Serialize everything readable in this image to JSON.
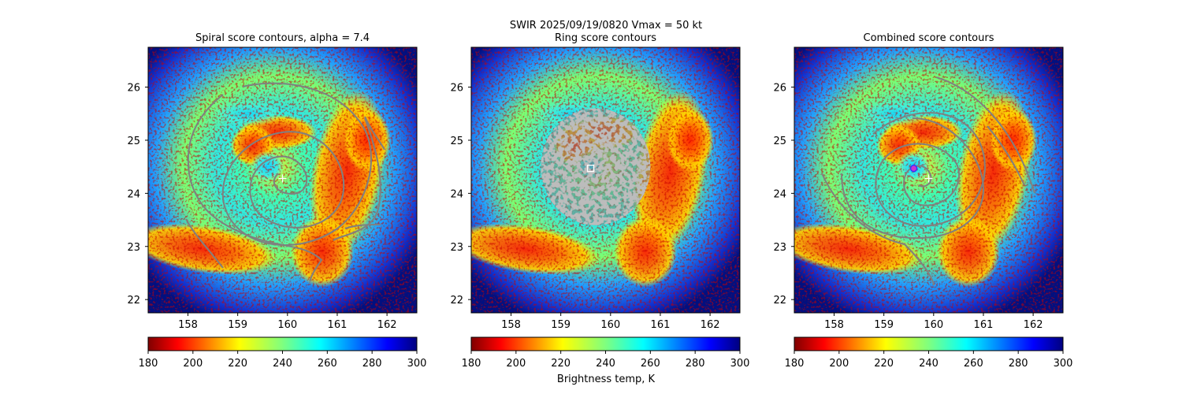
{
  "figure": {
    "suptitle_line1": "SWIR  2025/09/19/0820    Vmax = 50 kt",
    "colorbar_label": "Brightness temp, K"
  },
  "colors": {
    "contour": "#808080",
    "marker_white": "#ffffff",
    "marker_blue": "#3333ff",
    "marker_magenta": "#cc33cc"
  },
  "chart_data": [
    {
      "type": "heatmap",
      "title": "Spiral score contours, alpha =  7.4",
      "xlim": [
        157.2,
        162.6
      ],
      "ylim": [
        21.75,
        26.75
      ],
      "xticks": [
        158,
        159,
        160,
        161,
        162
      ],
      "yticks": [
        22,
        23,
        24,
        25,
        26
      ],
      "center_marker": {
        "symbol": "+",
        "x": 159.9,
        "y": 24.28
      },
      "colorbar": {
        "min": 180,
        "max": 300,
        "ticks": [
          180,
          200,
          220,
          240,
          260,
          280,
          300
        ],
        "cmap": "jet_r"
      }
    },
    {
      "type": "heatmap",
      "title": "Ring score contours",
      "xlim": [
        157.2,
        162.6
      ],
      "ylim": [
        21.75,
        26.75
      ],
      "xticks": [
        158,
        159,
        160,
        161,
        162
      ],
      "yticks": [
        22,
        23,
        24,
        25,
        26
      ],
      "center_marker": {
        "symbol": "square",
        "x": 159.6,
        "y": 24.47
      },
      "ring_region": {
        "x": 159.7,
        "y": 24.5,
        "radius_deg": 1.1
      },
      "colorbar": {
        "min": 180,
        "max": 300,
        "ticks": [
          180,
          200,
          220,
          240,
          260,
          280,
          300
        ],
        "cmap": "jet_r"
      }
    },
    {
      "type": "heatmap",
      "title": "Combined score contours",
      "xlim": [
        157.2,
        162.6
      ],
      "ylim": [
        21.75,
        26.75
      ],
      "xticks": [
        158,
        159,
        160,
        161,
        162
      ],
      "yticks": [
        22,
        23,
        24,
        25,
        26
      ],
      "center_marker": {
        "symbol": "+",
        "x": 159.9,
        "y": 24.28
      },
      "combined_marker": {
        "symbol": "circle",
        "x": 159.6,
        "y": 24.47
      },
      "colorbar": {
        "min": 180,
        "max": 300,
        "ticks": [
          180,
          200,
          220,
          240,
          260,
          280,
          300
        ],
        "cmap": "jet_r"
      }
    }
  ]
}
